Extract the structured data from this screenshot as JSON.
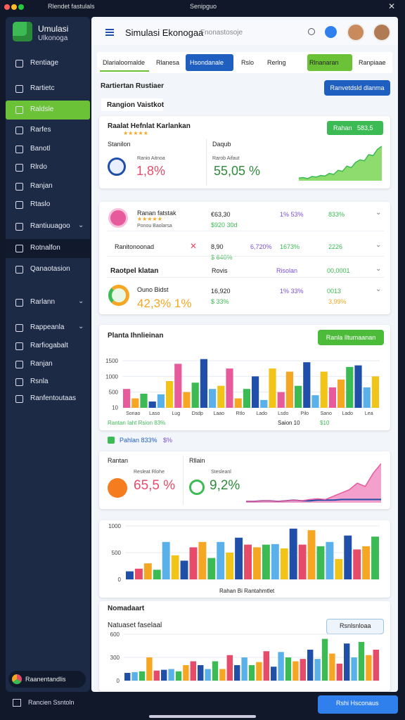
{
  "window": {
    "title": "Rlendet fastulals",
    "center": "Senipguo"
  },
  "sidebar": {
    "brand": [
      "Umulasi",
      "Ulkonoga"
    ],
    "items": [
      "Rentiage",
      "Rartietc",
      "Raldsle",
      "Rarfes",
      "Banotl",
      "Rlrdo",
      "Ranjan",
      "Rtaslo",
      "Rantiuuagoo",
      "Rotnalfon",
      "Qanaotasion",
      "Rarlann",
      "Rappeanla",
      "Rarfiogabalt",
      "Ranjan",
      "Rsnla",
      "Ranfentoutaas"
    ],
    "footer": "Raanentandlis"
  },
  "header": {
    "title": "Simulasi Ekonogaa",
    "search": "Fnonastosoje"
  },
  "tabs": [
    "Dlarialoomalde",
    "Rlanesa",
    "Hsondanale",
    "Rslo",
    "Rerlng",
    "Rlnanaran",
    "Ranpiaae"
  ],
  "section": {
    "title": "Rartiertan Rustiaer",
    "button": "Ranvetdsld dlanma",
    "subtitle": "Rangion Vaistkot"
  },
  "card1": {
    "title": "Raalat Hefnlat Karlankan",
    "badge": "Rahan",
    "badge_value": "583,5",
    "left_label": "Stanilon",
    "left_caption": "Ranio Aitnoa",
    "left_value": "1,8%",
    "right_label": "Daqub",
    "right_caption": "Rarob Aifaut",
    "right_value": "55,05 %",
    "trend": {
      "ylim": [
        0,
        70
      ],
      "values": [
        5,
        6,
        4,
        8,
        7,
        10,
        9,
        14,
        12,
        20,
        18,
        28,
        25,
        35,
        40,
        38,
        50,
        48,
        60,
        66
      ]
    }
  },
  "list": {
    "rows": [
      {
        "name": "Ranan fatstak",
        "sub": "Ponou Baolarsa",
        "cells": [
          "€63,30",
          "1% 53%",
          "833%"
        ],
        "notes": [
          "$920  30d"
        ]
      },
      {
        "name": "Ranitonoonad",
        "cells": [
          "8,90",
          "6,720%",
          "1673%",
          "2226"
        ],
        "notes": [
          "$ 640%"
        ]
      },
      {
        "name": "Raotpel klatan",
        "cells": [
          "Rovis",
          "Risolan",
          "00,0001"
        ]
      },
      {
        "name": "Ouno Bidst",
        "sub": "42,3% 1%",
        "cells": [
          "16,920",
          "1% 33%",
          "0013"
        ],
        "notes": [
          "$ 33%",
          "3,99%"
        ]
      }
    ]
  },
  "chart1": {
    "title": "Planta Ihnlieinan",
    "button": "Ranla Iltumaanan",
    "ylim": [
      0,
      1700
    ],
    "yticks": [
      10,
      500,
      1000,
      1500
    ],
    "xlabels": [
      "Sonao",
      "Laso",
      "Lug",
      "Dsdp",
      "Laao",
      "Rtlo",
      "Lado",
      "Lsdo",
      "Pilo",
      "Sano",
      "Lado",
      "Lea"
    ],
    "values": [
      600,
      300,
      450,
      200,
      430,
      850,
      1400,
      500,
      800,
      1550,
      600,
      700,
      1250,
      300,
      600,
      1000,
      250,
      1250,
      500,
      1150,
      700,
      1450,
      400,
      1150,
      650,
      900,
      1300,
      1350,
      650,
      1000
    ],
    "palette": [
      "#e75a9c",
      "#f5a623",
      "#3cba54",
      "#1f4fa8",
      "#5ab0e8",
      "#f0c419"
    ],
    "legend": "Rantan Iaht  Rsion 83%",
    "legend_right": "Saion 10",
    "legend_value": "$10"
  },
  "summary": {
    "text": "Pahlan 833%",
    "value": "$%"
  },
  "card4": {
    "left_label": "Rantan",
    "left_caption": "Resleat Rlohe",
    "left_value": "65,5 %",
    "mid_label": "Rllain",
    "mid_caption": "Stesleanl",
    "mid_value": "9,2%",
    "trend": {
      "ylim": [
        0,
        70
      ],
      "base": [
        2,
        2,
        3,
        3,
        2,
        3,
        4,
        3,
        3,
        4,
        4,
        4,
        5,
        5,
        5,
        5,
        5,
        5
      ],
      "values": [
        2,
        2,
        3,
        3,
        2,
        3,
        4,
        3,
        5,
        6,
        5,
        10,
        15,
        20,
        30,
        25,
        45,
        60
      ]
    }
  },
  "chart2": {
    "ylim": [
      0,
      1000
    ],
    "yticks": [
      0,
      500,
      1000
    ],
    "values": [
      150,
      200,
      300,
      180,
      700,
      450,
      350,
      600,
      700,
      400,
      700,
      500,
      780,
      650,
      600,
      650,
      660,
      580,
      950,
      650,
      920,
      620,
      700,
      380,
      820,
      560,
      620,
      800
    ],
    "palette": [
      "#1f4fa8",
      "#e74b6a",
      "#f5a623",
      "#3cba54",
      "#5ab0e8",
      "#f0c419"
    ],
    "footer": "Rahan Bi Rantahmtlet"
  },
  "card6": {
    "title": "Nomadaart",
    "subtitle": "Natuaset faselaal",
    "button": "Rsnlsnloaa"
  },
  "chart3": {
    "ylim": [
      0,
      600
    ],
    "yticks": [
      0,
      300,
      600
    ],
    "values": [
      100,
      110,
      120,
      300,
      130,
      140,
      150,
      120,
      200,
      250,
      200,
      150,
      250,
      150,
      330,
      200,
      300,
      200,
      240,
      380,
      180,
      370,
      300,
      250,
      280,
      400,
      280,
      540,
      350,
      220,
      480,
      300,
      500,
      330,
      400
    ],
    "palette": [
      "#1f4fa8",
      "#5ab0e8",
      "#3cba54",
      "#f5a623",
      "#e74b6a"
    ]
  },
  "bottom": {
    "text": "Rancien Ssntoln",
    "button": "Rshi Hsconaus"
  }
}
